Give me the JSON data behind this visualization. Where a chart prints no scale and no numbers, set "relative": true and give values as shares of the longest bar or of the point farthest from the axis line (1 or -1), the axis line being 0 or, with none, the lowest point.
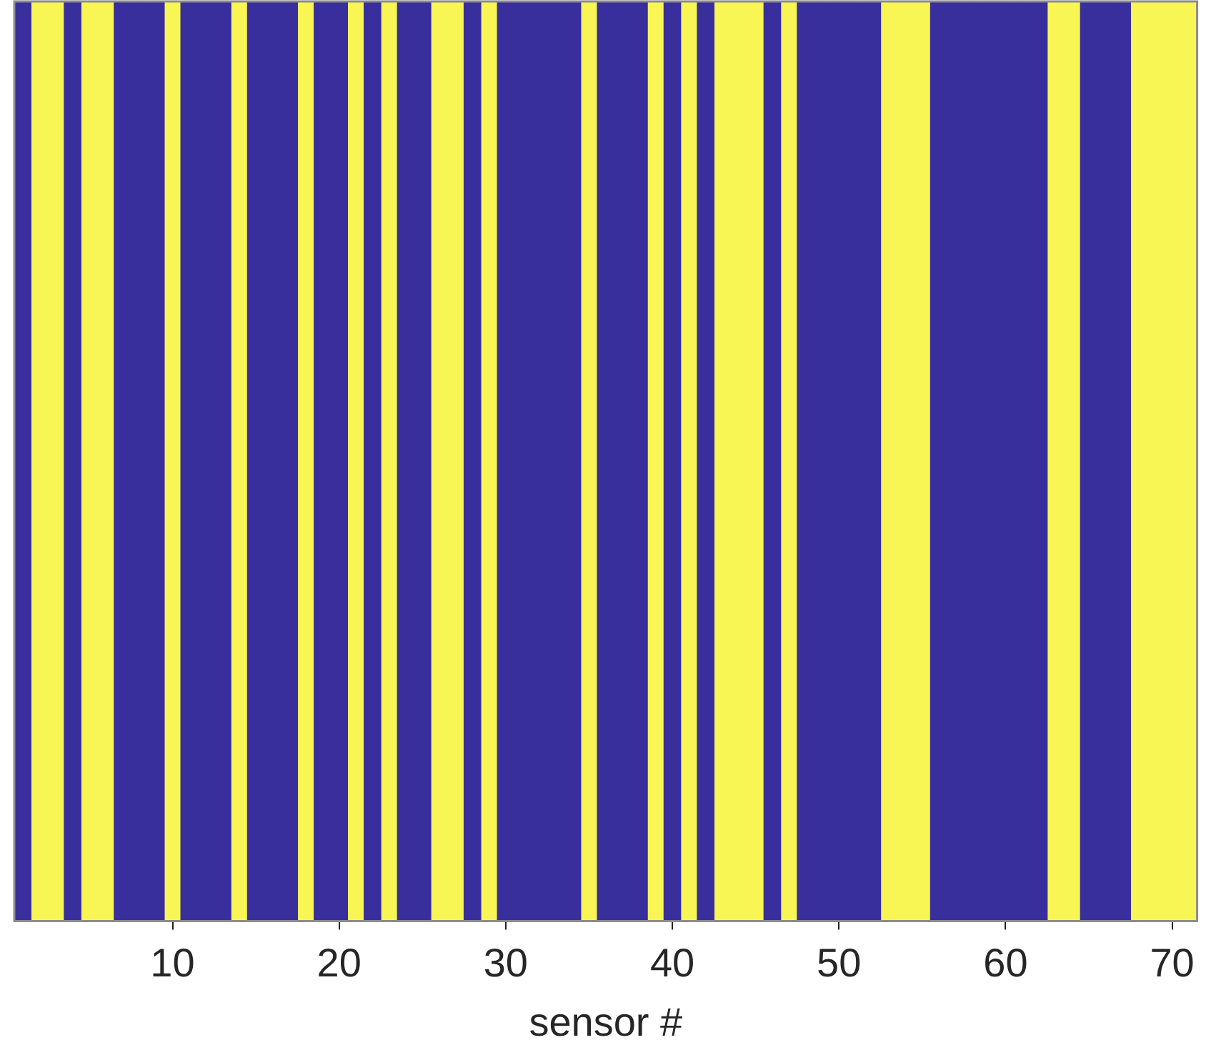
{
  "chart_data": {
    "type": "bar",
    "relative": true,
    "xlabel": "sensor #",
    "x": [
      1,
      2,
      3,
      4,
      5,
      6,
      7,
      8,
      9,
      10,
      11,
      12,
      13,
      14,
      15,
      16,
      17,
      18,
      19,
      20,
      21,
      22,
      23,
      24,
      25,
      26,
      27,
      28,
      29,
      30,
      31,
      32,
      33,
      34,
      35,
      36,
      37,
      38,
      39,
      40,
      41,
      42,
      43,
      44,
      45,
      46,
      47,
      48,
      49,
      50,
      51,
      52,
      53,
      54,
      55,
      56,
      57,
      58,
      59,
      60,
      61,
      62,
      63,
      64,
      65,
      66,
      67,
      68,
      69,
      70,
      71
    ],
    "xlim": [
      0.5,
      71.5
    ],
    "xticks": [
      10,
      20,
      30,
      40,
      50,
      60,
      70
    ],
    "tick_labels": "x",
    "legend": false,
    "series": [
      {
        "color": "#382e9c",
        "values": [
          1,
          null,
          null,
          1,
          null,
          null,
          1,
          1,
          1,
          null,
          1,
          1,
          1,
          null,
          1,
          1,
          1,
          null,
          1,
          1,
          null,
          1,
          null,
          1,
          1,
          null,
          null,
          1,
          null,
          1,
          1,
          1,
          1,
          1,
          null,
          1,
          1,
          1,
          null,
          1,
          null,
          1,
          null,
          null,
          null,
          1,
          null,
          1,
          1,
          1,
          1,
          1,
          null,
          null,
          null,
          1,
          1,
          1,
          1,
          1,
          1,
          1,
          null,
          null,
          1,
          1,
          1,
          null,
          null,
          null,
          null
        ]
      },
      {
        "color": "#f8f654",
        "values": [
          null,
          1,
          1,
          null,
          1,
          1,
          null,
          null,
          null,
          1,
          null,
          null,
          null,
          1,
          null,
          null,
          null,
          1,
          null,
          null,
          1,
          null,
          1,
          null,
          null,
          1,
          1,
          null,
          1,
          null,
          null,
          null,
          null,
          null,
          1,
          null,
          null,
          null,
          1,
          null,
          1,
          null,
          1,
          1,
          1,
          null,
          1,
          null,
          null,
          null,
          null,
          null,
          1,
          1,
          1,
          null,
          null,
          null,
          null,
          null,
          null,
          null,
          1,
          1,
          null,
          null,
          null,
          1,
          1,
          1,
          1
        ]
      }
    ]
  }
}
